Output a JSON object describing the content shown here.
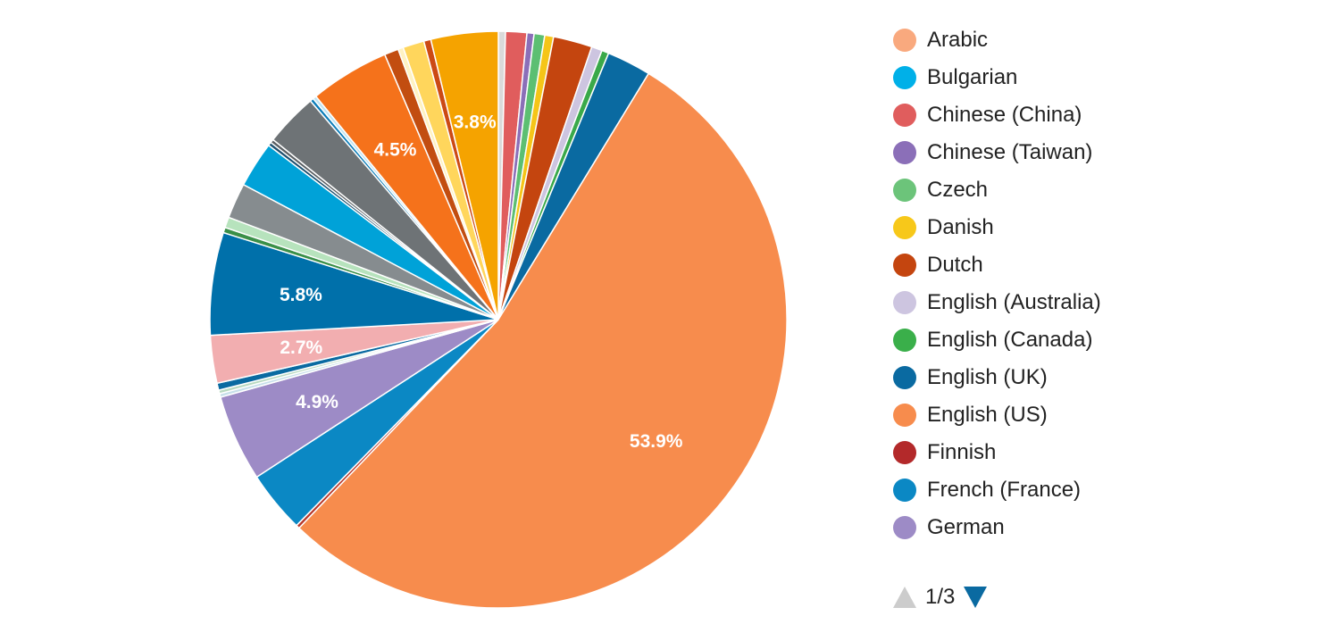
{
  "chart_data": {
    "type": "pie",
    "slices": [
      {
        "name": "",
        "value": 0.4,
        "color": "#dadada"
      },
      {
        "name": "",
        "value": 1.2,
        "color": "#e05d5d"
      },
      {
        "name": "",
        "value": 0.4,
        "color": "#8b6fb8"
      },
      {
        "name": "",
        "value": 0.6,
        "color": "#5cbf72"
      },
      {
        "name": "",
        "value": 0.5,
        "color": "#f5c518"
      },
      {
        "name": "",
        "value": 2.2,
        "color": "#c4450f"
      },
      {
        "name": "",
        "value": 0.6,
        "color": "#cdc5e0"
      },
      {
        "name": "",
        "value": 0.4,
        "color": "#3aa94a"
      },
      {
        "name": "",
        "value": 2.5,
        "color": "#0a6aa1"
      },
      {
        "name": "",
        "value": 53.9,
        "color": "#f78c4d",
        "label": "53.9%"
      },
      {
        "name": "",
        "value": 0.2,
        "color": "#b8372a"
      },
      {
        "name": "",
        "value": 3.5,
        "color": "#0b88c4"
      },
      {
        "name": "",
        "value": 4.9,
        "color": "#9d8bc6",
        "label": "4.9%"
      },
      {
        "name": "",
        "value": 0.2,
        "color": "#c6dfe9"
      },
      {
        "name": "",
        "value": 0.2,
        "color": "#b8d9c0"
      },
      {
        "name": "",
        "value": 0.4,
        "color": "#0a6aa1"
      },
      {
        "name": "",
        "value": 2.7,
        "color": "#f2aeb0",
        "label": "2.7%"
      },
      {
        "name": "",
        "value": 5.8,
        "color": "#0070aa",
        "label": "5.8%"
      },
      {
        "name": "",
        "value": 0.3,
        "color": "#3a8f48"
      },
      {
        "name": "",
        "value": 0.6,
        "color": "#b7e3bd"
      },
      {
        "name": "",
        "value": 2.0,
        "color": "#868c8f"
      },
      {
        "name": "",
        "value": 2.6,
        "color": "#00a2d8"
      },
      {
        "name": "",
        "value": 0.2,
        "color": "#1d4f6e"
      },
      {
        "name": "",
        "value": 0.2,
        "color": "#5a5f63"
      },
      {
        "name": "",
        "value": 3.0,
        "color": "#6e7376"
      },
      {
        "name": "",
        "value": 0.2,
        "color": "#0a7cb8"
      },
      {
        "name": "",
        "value": 0.2,
        "color": "#bfe4f2"
      },
      {
        "name": "",
        "value": 4.5,
        "color": "#f5721b",
        "label": "4.5%"
      },
      {
        "name": "",
        "value": 0.8,
        "color": "#c24d10"
      },
      {
        "name": "",
        "value": 0.3,
        "color": "#fff2c2"
      },
      {
        "name": "",
        "value": 1.2,
        "color": "#ffd65c"
      },
      {
        "name": "",
        "value": 0.4,
        "color": "#cc4a14"
      },
      {
        "name": "",
        "value": 3.8,
        "color": "#f5a300",
        "label": "3.8%"
      }
    ],
    "legend_position": "right",
    "legend": [
      {
        "label": "Arabic",
        "color": "#f9a97e"
      },
      {
        "label": "Bulgarian",
        "color": "#00b0e8"
      },
      {
        "label": "Chinese (China)",
        "color": "#e05d5d"
      },
      {
        "label": "Chinese (Taiwan)",
        "color": "#8b6fb8"
      },
      {
        "label": "Czech",
        "color": "#6cc47a"
      },
      {
        "label": "Danish",
        "color": "#f7c81a"
      },
      {
        "label": "Dutch",
        "color": "#c4450f"
      },
      {
        "label": "English (Australia)",
        "color": "#cdc5e0"
      },
      {
        "label": "English (Canada)",
        "color": "#3aaf4a"
      },
      {
        "label": "English (UK)",
        "color": "#0a6aa1"
      },
      {
        "label": "English (US)",
        "color": "#f78c4d"
      },
      {
        "label": "Finnish",
        "color": "#b3292a"
      },
      {
        "label": "French (France)",
        "color": "#0b88c4"
      },
      {
        "label": "German",
        "color": "#9d8bc6"
      }
    ]
  },
  "pager": {
    "text": "1/3",
    "prev_icon": "triangle-up-icon",
    "next_icon": "triangle-down-icon",
    "prev_color": "#cccccc",
    "next_color": "#0a6aa1"
  }
}
